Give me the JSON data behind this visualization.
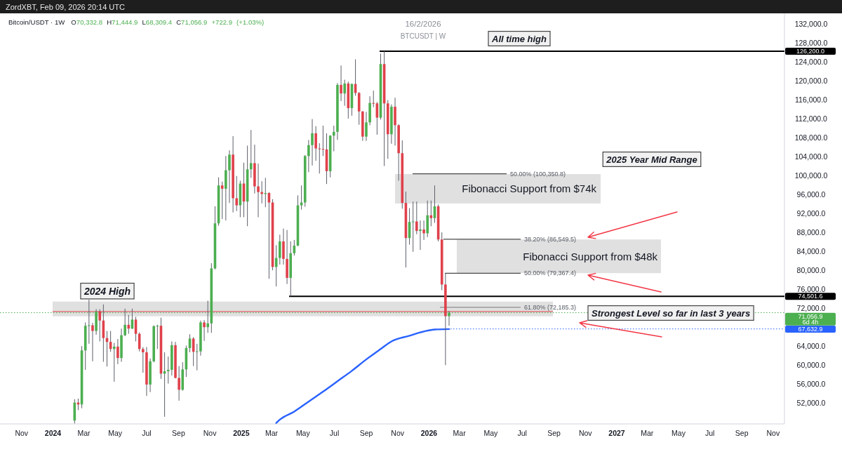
{
  "chart_data": {
    "type": "candlestick",
    "title": "Bitcoin/USDT · 1W",
    "subtitle": "O70,332.8 H71,444.9 L68,309.4 C71,056.9 +722.9 (+1.03%)",
    "x": [
      "2024-02-12",
      "2024-02-19",
      "2024-02-26",
      "2024-03-04",
      "2024-03-11",
      "2024-03-18",
      "2024-03-25",
      "2024-04-01",
      "2024-04-08",
      "2024-04-15",
      "2024-04-22",
      "2024-04-29",
      "2024-05-06",
      "2024-05-13",
      "2024-05-20",
      "2024-05-27",
      "2024-06-03",
      "2024-06-10",
      "2024-06-17",
      "2024-06-24",
      "2024-07-01",
      "2024-07-08",
      "2024-07-15",
      "2024-07-22",
      "2024-07-29",
      "2024-08-05",
      "2024-08-12",
      "2024-08-19",
      "2024-08-26",
      "2024-09-02",
      "2024-09-09",
      "2024-09-16",
      "2024-09-23",
      "2024-09-30",
      "2024-10-07",
      "2024-10-14",
      "2024-10-21",
      "2024-10-28",
      "2024-11-04",
      "2024-11-11",
      "2024-11-18",
      "2024-11-25",
      "2024-12-02",
      "2024-12-09",
      "2024-12-16",
      "2024-12-23",
      "2024-12-30",
      "2025-01-06",
      "2025-01-13",
      "2025-01-20",
      "2025-01-27",
      "2025-02-03",
      "2025-02-10",
      "2025-02-17",
      "2025-02-24",
      "2025-03-03",
      "2025-03-10",
      "2025-03-17",
      "2025-03-24",
      "2025-03-31",
      "2025-04-07",
      "2025-04-14",
      "2025-04-21",
      "2025-04-28",
      "2025-05-05",
      "2025-05-12",
      "2025-05-19",
      "2025-05-26",
      "2025-06-02",
      "2025-06-09",
      "2025-06-16",
      "2025-06-23",
      "2025-06-30",
      "2025-07-07",
      "2025-07-14",
      "2025-07-21",
      "2025-07-28",
      "2025-08-04",
      "2025-08-11",
      "2025-08-18",
      "2025-08-25",
      "2025-09-01",
      "2025-09-08",
      "2025-09-15",
      "2025-09-22",
      "2025-09-29",
      "2025-10-06",
      "2025-10-13",
      "2025-10-20",
      "2025-10-27",
      "2025-11-03",
      "2025-11-10",
      "2025-11-17",
      "2025-11-24",
      "2025-12-01",
      "2025-12-08",
      "2025-12-15",
      "2025-12-22",
      "2025-12-29",
      "2026-01-05",
      "2026-01-12",
      "2026-01-19",
      "2026-01-26",
      "2026-02-02",
      "2026-02-09"
    ],
    "ohlc": [
      [
        48300,
        52800,
        47700,
        52100
      ],
      [
        52100,
        52950,
        50500,
        51700
      ],
      [
        51700,
        64000,
        50900,
        63100
      ],
      [
        63100,
        69000,
        59000,
        68300
      ],
      [
        68300,
        73800,
        64500,
        68400
      ],
      [
        68400,
        68900,
        60800,
        67200
      ],
      [
        67200,
        71800,
        66400,
        71300
      ],
      [
        71300,
        71800,
        65000,
        69400
      ],
      [
        69400,
        72800,
        60700,
        65700
      ],
      [
        65700,
        67200,
        59700,
        64900
      ],
      [
        64900,
        67200,
        62800,
        63400
      ],
      [
        63400,
        64700,
        56500,
        63900
      ],
      [
        63900,
        65500,
        60200,
        61500
      ],
      [
        61500,
        67700,
        60700,
        66300
      ],
      [
        66300,
        71900,
        66100,
        68500
      ],
      [
        68500,
        70600,
        66600,
        67700
      ],
      [
        67700,
        71900,
        67600,
        69600
      ],
      [
        69600,
        70200,
        65000,
        66600
      ],
      [
        66600,
        66900,
        62900,
        63400
      ],
      [
        63400,
        63800,
        58400,
        62700
      ],
      [
        62700,
        63800,
        53500,
        55900
      ],
      [
        55900,
        61400,
        54300,
        60800
      ],
      [
        60800,
        68400,
        60600,
        68200
      ],
      [
        68200,
        68500,
        63400,
        68300
      ],
      [
        68300,
        70000,
        57100,
        58200
      ],
      [
        58200,
        62700,
        49100,
        58700
      ],
      [
        58700,
        61800,
        56100,
        59000
      ],
      [
        59000,
        65000,
        57800,
        64200
      ],
      [
        64200,
        64900,
        57200,
        57300
      ],
      [
        57300,
        59800,
        52500,
        54800
      ],
      [
        54800,
        60600,
        54600,
        59100
      ],
      [
        59100,
        64100,
        57500,
        63600
      ],
      [
        63600,
        66500,
        62700,
        65600
      ],
      [
        65600,
        65900,
        59800,
        62800
      ],
      [
        62800,
        64500,
        58900,
        62900
      ],
      [
        62900,
        69400,
        62000,
        69000
      ],
      [
        69000,
        69500,
        65100,
        68000
      ],
      [
        68000,
        73600,
        66800,
        68800
      ],
      [
        68800,
        81500,
        66800,
        80400
      ],
      [
        80400,
        93500,
        80200,
        89900
      ],
      [
        89900,
        99600,
        89400,
        97900
      ],
      [
        97900,
        98700,
        90800,
        97200
      ],
      [
        97200,
        104100,
        90500,
        101100
      ],
      [
        101100,
        105300,
        94200,
        104400
      ],
      [
        104400,
        108300,
        92200,
        95200
      ],
      [
        95200,
        99900,
        92500,
        93700
      ],
      [
        93700,
        98900,
        91200,
        98300
      ],
      [
        98300,
        102700,
        91200,
        94500
      ],
      [
        94500,
        106300,
        89300,
        101300
      ],
      [
        101300,
        109600,
        99500,
        102600
      ],
      [
        102600,
        106500,
        96200,
        97700
      ],
      [
        97700,
        102500,
        91200,
        96500
      ],
      [
        96500,
        98800,
        94100,
        96100
      ],
      [
        96100,
        99500,
        93300,
        96300
      ],
      [
        96300,
        96500,
        78200,
        94300
      ],
      [
        94300,
        95000,
        80000,
        80700
      ],
      [
        80700,
        85300,
        76600,
        82600
      ],
      [
        82600,
        87500,
        81200,
        86100
      ],
      [
        86100,
        88800,
        81200,
        82400
      ],
      [
        82400,
        88500,
        77100,
        78400
      ],
      [
        78400,
        86100,
        74501.6,
        83600
      ],
      [
        83600,
        86400,
        83100,
        85200
      ],
      [
        85200,
        95800,
        85100,
        93700
      ],
      [
        93700,
        97900,
        92800,
        94300
      ],
      [
        94300,
        104300,
        93400,
        104100
      ],
      [
        104100,
        107500,
        100700,
        106400
      ],
      [
        106400,
        111900,
        102100,
        108900
      ],
      [
        108900,
        110400,
        103100,
        105700
      ],
      [
        105700,
        106800,
        100400,
        105600
      ],
      [
        105600,
        110500,
        104100,
        105500
      ],
      [
        105500,
        108900,
        98200,
        100900
      ],
      [
        100900,
        108500,
        99600,
        108400
      ],
      [
        108400,
        110500,
        105100,
        109200
      ],
      [
        109200,
        119500,
        107500,
        119100
      ],
      [
        119100,
        123200,
        115700,
        117300
      ],
      [
        117300,
        120200,
        114700,
        119400
      ],
      [
        119400,
        119800,
        112000,
        114200
      ],
      [
        114200,
        119400,
        112600,
        119300
      ],
      [
        119300,
        124500,
        116800,
        117400
      ],
      [
        117400,
        117600,
        110700,
        113500
      ],
      [
        113500,
        113600,
        107300,
        108200
      ],
      [
        108200,
        113400,
        107300,
        111200
      ],
      [
        111200,
        116700,
        110600,
        115300
      ],
      [
        115300,
        117900,
        114400,
        115200
      ],
      [
        115200,
        115500,
        108600,
        112200
      ],
      [
        112200,
        125700,
        111800,
        123500
      ],
      [
        123500,
        126200,
        102000,
        115200
      ],
      [
        115200,
        115900,
        103500,
        108700
      ],
      [
        108700,
        115000,
        106700,
        114500
      ],
      [
        114500,
        116400,
        106300,
        110600
      ],
      [
        110600,
        110800,
        98900,
        104700
      ],
      [
        104700,
        107400,
        93000,
        94200
      ],
      [
        94200,
        96600,
        80600,
        86800
      ],
      [
        86800,
        93100,
        85400,
        90200
      ],
      [
        90200,
        94500,
        83900,
        90300
      ],
      [
        90300,
        94500,
        87600,
        88300
      ],
      [
        88300,
        90500,
        84300,
        88600
      ],
      [
        88600,
        90500,
        86400,
        87800
      ],
      [
        87800,
        94700,
        87000,
        91600
      ],
      [
        91600,
        94700,
        89300,
        91000
      ],
      [
        91000,
        97900,
        90000,
        93500
      ],
      [
        93500,
        93900,
        86100,
        86500
      ],
      [
        86500,
        88000,
        75800,
        77000
      ],
      [
        77000,
        79400,
        60000,
        70332.8
      ],
      [
        70332.8,
        71444.9,
        68309.4,
        71056.9
      ]
    ],
    "colors": [
      "#4caf50",
      "#e0414b",
      "#4caf50",
      "#4caf50",
      "#4caf50",
      "#e0414b",
      "#4caf50",
      "#e0414b",
      "#e0414b",
      "#e0414b",
      "#e0414b",
      "#4caf50",
      "#e0414b",
      "#4caf50",
      "#4caf50",
      "#e0414b",
      "#4caf50",
      "#e0414b",
      "#e0414b",
      "#e0414b",
      "#e0414b",
      "#4caf50",
      "#4caf50",
      "#4caf50",
      "#e0414b",
      "#4caf50",
      "#4caf50",
      "#4caf50",
      "#e0414b",
      "#e0414b",
      "#4caf50",
      "#4caf50",
      "#4caf50",
      "#e0414b",
      "#4caf50",
      "#4caf50",
      "#e0414b",
      "#4caf50",
      "#4caf50",
      "#4caf50",
      "#4caf50",
      "#e0414b",
      "#4caf50",
      "#4caf50",
      "#e0414b",
      "#e0414b",
      "#4caf50",
      "#e0414b",
      "#4caf50",
      "#4caf50",
      "#e0414b",
      "#e0414b",
      "#e0414b",
      "#4caf50",
      "#e0414b",
      "#e0414b",
      "#4caf50",
      "#4caf50",
      "#e0414b",
      "#e0414b",
      "#4caf50",
      "#4caf50",
      "#4caf50",
      "#4caf50",
      "#4caf50",
      "#4caf50",
      "#4caf50",
      "#e0414b",
      "#e0414b",
      "#e0414b",
      "#e0414b",
      "#4caf50",
      "#4caf50",
      "#4caf50",
      "#e0414b",
      "#4caf50",
      "#e0414b",
      "#4caf50",
      "#e0414b",
      "#e0414b",
      "#e0414b",
      "#4caf50",
      "#4caf50",
      "#e0414b",
      "#e0414b",
      "#4caf50",
      "#e0414b",
      "#e0414b",
      "#4caf50",
      "#e0414b",
      "#e0414b",
      "#e0414b",
      "#e0414b",
      "#4caf50",
      "#4caf50",
      "#e0414b",
      "#4caf50",
      "#e0414b",
      "#4caf50",
      "#e0414b",
      "#4caf50",
      "#e0414b",
      "#e0414b",
      "#e0414b",
      "#4caf50"
    ],
    "series": [
      {
        "type": "line",
        "color": "#2962ff",
        "x": [
          "2025-03-10",
          "2025-03-17",
          "2025-04-14",
          "2025-05-12",
          "2025-06-09",
          "2025-07-07",
          "2025-08-04",
          "2025-09-01",
          "2025-09-29",
          "2025-10-20",
          "2025-11-24",
          "2025-12-15",
          "2026-01-12",
          "2026-02-09"
        ],
        "values": [
          47800,
          48500,
          50200,
          52300,
          54400,
          56600,
          58800,
          61200,
          63400,
          65000,
          66200,
          66900,
          67500,
          67600
        ]
      }
    ],
    "xlim": [
      "2023-09-20",
      "2027-11-23"
    ],
    "xticks": [
      {
        "value": "2023-11-01",
        "label": "Nov"
      },
      {
        "value": "2024-01-01",
        "label": "2024"
      },
      {
        "value": "2024-03-01",
        "label": "Mar"
      },
      {
        "value": "2024-05-01",
        "label": "May"
      },
      {
        "value": "2024-07-01",
        "label": "Jul"
      },
      {
        "value": "2024-09-01",
        "label": "Sep"
      },
      {
        "value": "2024-11-01",
        "label": "Nov"
      },
      {
        "value": "2025-01-01",
        "label": "2025"
      },
      {
        "value": "2025-03-01",
        "label": "Mar"
      },
      {
        "value": "2025-05-01",
        "label": "May"
      },
      {
        "value": "2025-07-01",
        "label": "Jul"
      },
      {
        "value": "2025-09-01",
        "label": "Sep"
      },
      {
        "value": "2025-11-01",
        "label": "Nov"
      },
      {
        "value": "2026-01-01",
        "label": "2026"
      },
      {
        "value": "2026-03-01",
        "label": "Mar"
      },
      {
        "value": "2026-05-01",
        "label": "May"
      },
      {
        "value": "2026-07-01",
        "label": "Jul"
      },
      {
        "value": "2026-09-01",
        "label": "Sep"
      },
      {
        "value": "2026-11-01",
        "label": "Nov"
      },
      {
        "value": "2027-01-01",
        "label": "2027"
      },
      {
        "value": "2027-03-01",
        "label": "Mar"
      },
      {
        "value": "2027-05-01",
        "label": "May"
      },
      {
        "value": "2027-07-01",
        "label": "Jul"
      },
      {
        "value": "2027-09-01",
        "label": "Sep"
      },
      {
        "value": "2027-11-01",
        "label": "Nov"
      }
    ],
    "ylim": [
      47600,
      134200
    ],
    "yticks": [
      {
        "value": 52000,
        "label": "52,000.0"
      },
      {
        "value": 56000,
        "label": "56,000.0"
      },
      {
        "value": 60000,
        "label": "60,000.0"
      },
      {
        "value": 64000,
        "label": "64,000.0"
      },
      {
        "value": 72000,
        "label": "72,000.0"
      },
      {
        "value": 76000,
        "label": "76,000.0"
      },
      {
        "value": 80000,
        "label": "80,000.0"
      },
      {
        "value": 84000,
        "label": "84,000.0"
      },
      {
        "value": 88000,
        "label": "88,000.0"
      },
      {
        "value": 92000,
        "label": "92,000.0"
      },
      {
        "value": 96000,
        "label": "96,000.0"
      },
      {
        "value": 100000,
        "label": "100,000.0"
      },
      {
        "value": 104000,
        "label": "104,000.0"
      },
      {
        "value": 108000,
        "label": "108,000.0"
      },
      {
        "value": 112000,
        "label": "112,000.0"
      },
      {
        "value": 116000,
        "label": "116,000.0"
      },
      {
        "value": 120000,
        "label": "120,000.0"
      },
      {
        "value": 124000,
        "label": "124,000.0"
      },
      {
        "value": 128000,
        "label": "128,000.0"
      },
      {
        "value": 132000,
        "label": "132,000.0"
      }
    ],
    "ref_lines": [
      {
        "axis": "y",
        "value": 126200,
        "label": "126,200.0",
        "color": "#000000"
      },
      {
        "axis": "y",
        "value": 74501.6,
        "label": "74,501.6",
        "color": "#000000"
      },
      {
        "axis": "y",
        "value": 100350.8,
        "label": "50.00% (100,350.8)",
        "color": "#4a4a4a"
      },
      {
        "axis": "y",
        "value": 86549.5,
        "label": "38.20% (86,549.5)",
        "color": "#4a4a4a"
      },
      {
        "axis": "y",
        "value": 79367.4,
        "label": "50.00% (79,367.4)",
        "color": "#4a4a4a"
      },
      {
        "axis": "y",
        "value": 72185.3,
        "label": "61.80% (72,185.3)",
        "color": "#8c8c8c"
      },
      {
        "axis": "y",
        "value": 71300,
        "color": "#e0414b"
      },
      {
        "axis": "y",
        "value": 71056.9,
        "label": "71,056.9\n6d 4h",
        "color": "#4caf50",
        "line_style": "dotted"
      },
      {
        "axis": "y",
        "value": 67632.9,
        "label": "67,632.9",
        "color": "#2962ff",
        "line_style": "dotted"
      }
    ],
    "bands": [
      {
        "axis": "y",
        "from": 70300,
        "to": 73400,
        "label": "2024 High",
        "color": "#dadada"
      },
      {
        "axis": "y",
        "from": 94100,
        "to": 100300,
        "label": "Fibonacci Support from $74k",
        "color": "#dadada"
      },
      {
        "axis": "y",
        "from": 79400,
        "to": 86500,
        "label": "Fibonacci Support from $48k",
        "color": "#dadada"
      }
    ],
    "annotations": [
      "ZordXBT, Feb 09, 2026 20:14 UTC",
      "16/2/2026",
      "BTCUSDT | W",
      "All time high",
      "2025 Year Mid Range",
      "Strongest Level so far in last 3 years"
    ]
  }
}
